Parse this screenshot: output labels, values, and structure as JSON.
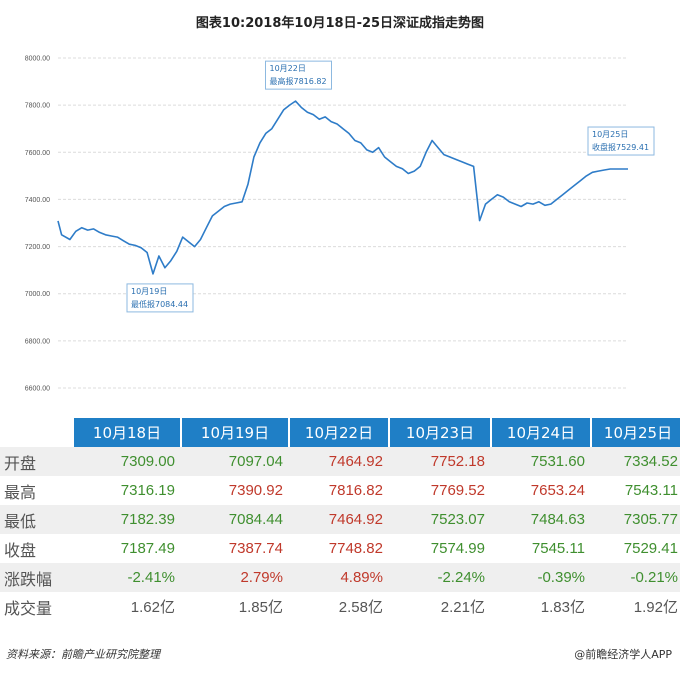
{
  "title": "图表10:2018年10月18日-25日深证成指走势图",
  "chart_data": {
    "type": "line",
    "title": "图表10:2018年10月18日-25日深证成指走势图",
    "ylim": [
      6600,
      8000
    ],
    "yticks": [
      "8000.00",
      "7800.00",
      "7600.00",
      "7400.00",
      "7200.00",
      "7000.00",
      "6800.00",
      "6600.00"
    ],
    "grid": true,
    "series": [
      {
        "color": "#2e7cc8",
        "x": [
          0,
          0.3,
          1,
          1.5,
          2,
          2.5,
          3,
          3.5,
          4,
          4.5,
          5,
          5.5,
          6,
          6.5,
          7,
          7.5,
          8,
          8.5,
          9,
          9.5,
          10,
          10.5,
          11,
          11.5,
          12,
          12.5,
          13,
          13.5,
          14,
          14.5,
          15,
          15.5,
          16,
          16.5,
          17,
          17.5,
          18,
          18.5,
          19,
          19.5,
          20,
          20.5,
          21,
          21.5,
          22,
          22.5,
          23,
          23.5,
          24,
          24.5,
          25,
          25.5,
          26,
          26.5,
          27,
          27.5,
          28,
          28.5,
          29,
          29.5,
          30,
          30.5,
          31,
          31.5,
          32,
          32.5,
          33,
          33.5,
          34,
          34.5,
          35,
          35.5,
          36,
          36.5,
          37,
          37.5,
          38,
          38.5,
          39,
          39.5,
          40,
          40.5,
          41,
          41.5,
          42,
          42.5,
          43,
          43.5,
          44,
          44.5,
          45,
          45.5,
          46,
          46.5,
          47,
          47.5,
          48
        ],
        "values": [
          7309,
          7250,
          7230,
          7265,
          7280,
          7270,
          7275,
          7260,
          7250,
          7245,
          7240,
          7225,
          7210,
          7205,
          7195,
          7175,
          7084,
          7160,
          7110,
          7140,
          7180,
          7240,
          7220,
          7200,
          7230,
          7280,
          7330,
          7350,
          7370,
          7380,
          7385,
          7390,
          7465,
          7580,
          7640,
          7680,
          7700,
          7740,
          7780,
          7800,
          7817,
          7790,
          7770,
          7760,
          7740,
          7750,
          7730,
          7720,
          7700,
          7680,
          7650,
          7640,
          7610,
          7600,
          7620,
          7580,
          7560,
          7540,
          7530,
          7510,
          7520,
          7540,
          7600,
          7650,
          7620,
          7590,
          7580,
          7570,
          7560,
          7550,
          7540,
          7310,
          7380,
          7400,
          7420,
          7410,
          7390,
          7380,
          7370,
          7385,
          7380,
          7390,
          7375,
          7380,
          7400,
          7420,
          7440,
          7460,
          7480,
          7500,
          7515,
          7520,
          7525,
          7529,
          7529,
          7529,
          7529
        ]
      }
    ],
    "annotations": [
      {
        "date": "10月19日",
        "text": "最低报7084.44"
      },
      {
        "date": "10月22日",
        "text": "最高报7816.82"
      },
      {
        "date": "10月25日",
        "text": "收盘报7529.41"
      }
    ]
  },
  "table": {
    "headers": [
      "10月18日",
      "10月19日",
      "10月22日",
      "10月23日",
      "10月24日",
      "10月25日"
    ],
    "rows": [
      {
        "label": "开盘",
        "values": [
          "7309.00",
          "7097.04",
          "7464.92",
          "7752.18",
          "7531.60",
          "7334.52"
        ],
        "trend": [
          "down",
          "down",
          "up",
          "up",
          "down",
          "down"
        ]
      },
      {
        "label": "最高",
        "values": [
          "7316.19",
          "7390.92",
          "7816.82",
          "7769.52",
          "7653.24",
          "7543.11"
        ],
        "trend": [
          "down",
          "up",
          "up",
          "up",
          "up",
          "down"
        ]
      },
      {
        "label": "最低",
        "values": [
          "7182.39",
          "7084.44",
          "7464.92",
          "7523.07",
          "7484.63",
          "7305.77"
        ],
        "trend": [
          "down",
          "down",
          "up",
          "down",
          "down",
          "down"
        ]
      },
      {
        "label": "收盘",
        "values": [
          "7187.49",
          "7387.74",
          "7748.82",
          "7574.99",
          "7545.11",
          "7529.41"
        ],
        "trend": [
          "down",
          "up",
          "up",
          "down",
          "down",
          "down"
        ]
      },
      {
        "label": "涨跌幅",
        "values": [
          "-2.41%",
          "2.79%",
          "4.89%",
          "-2.24%",
          "-0.39%",
          "-0.21%"
        ],
        "trend": [
          "down",
          "up",
          "up",
          "down",
          "down",
          "down"
        ]
      },
      {
        "label": "成交量",
        "values": [
          "1.62亿",
          "1.85亿",
          "2.58亿",
          "2.21亿",
          "1.83亿",
          "1.92亿"
        ],
        "trend": [
          "neutral",
          "neutral",
          "neutral",
          "neutral",
          "neutral",
          "neutral"
        ]
      }
    ]
  },
  "footer": {
    "source": "资料来源：前瞻产业研究院整理",
    "brand": "@前瞻经济学人APP"
  }
}
